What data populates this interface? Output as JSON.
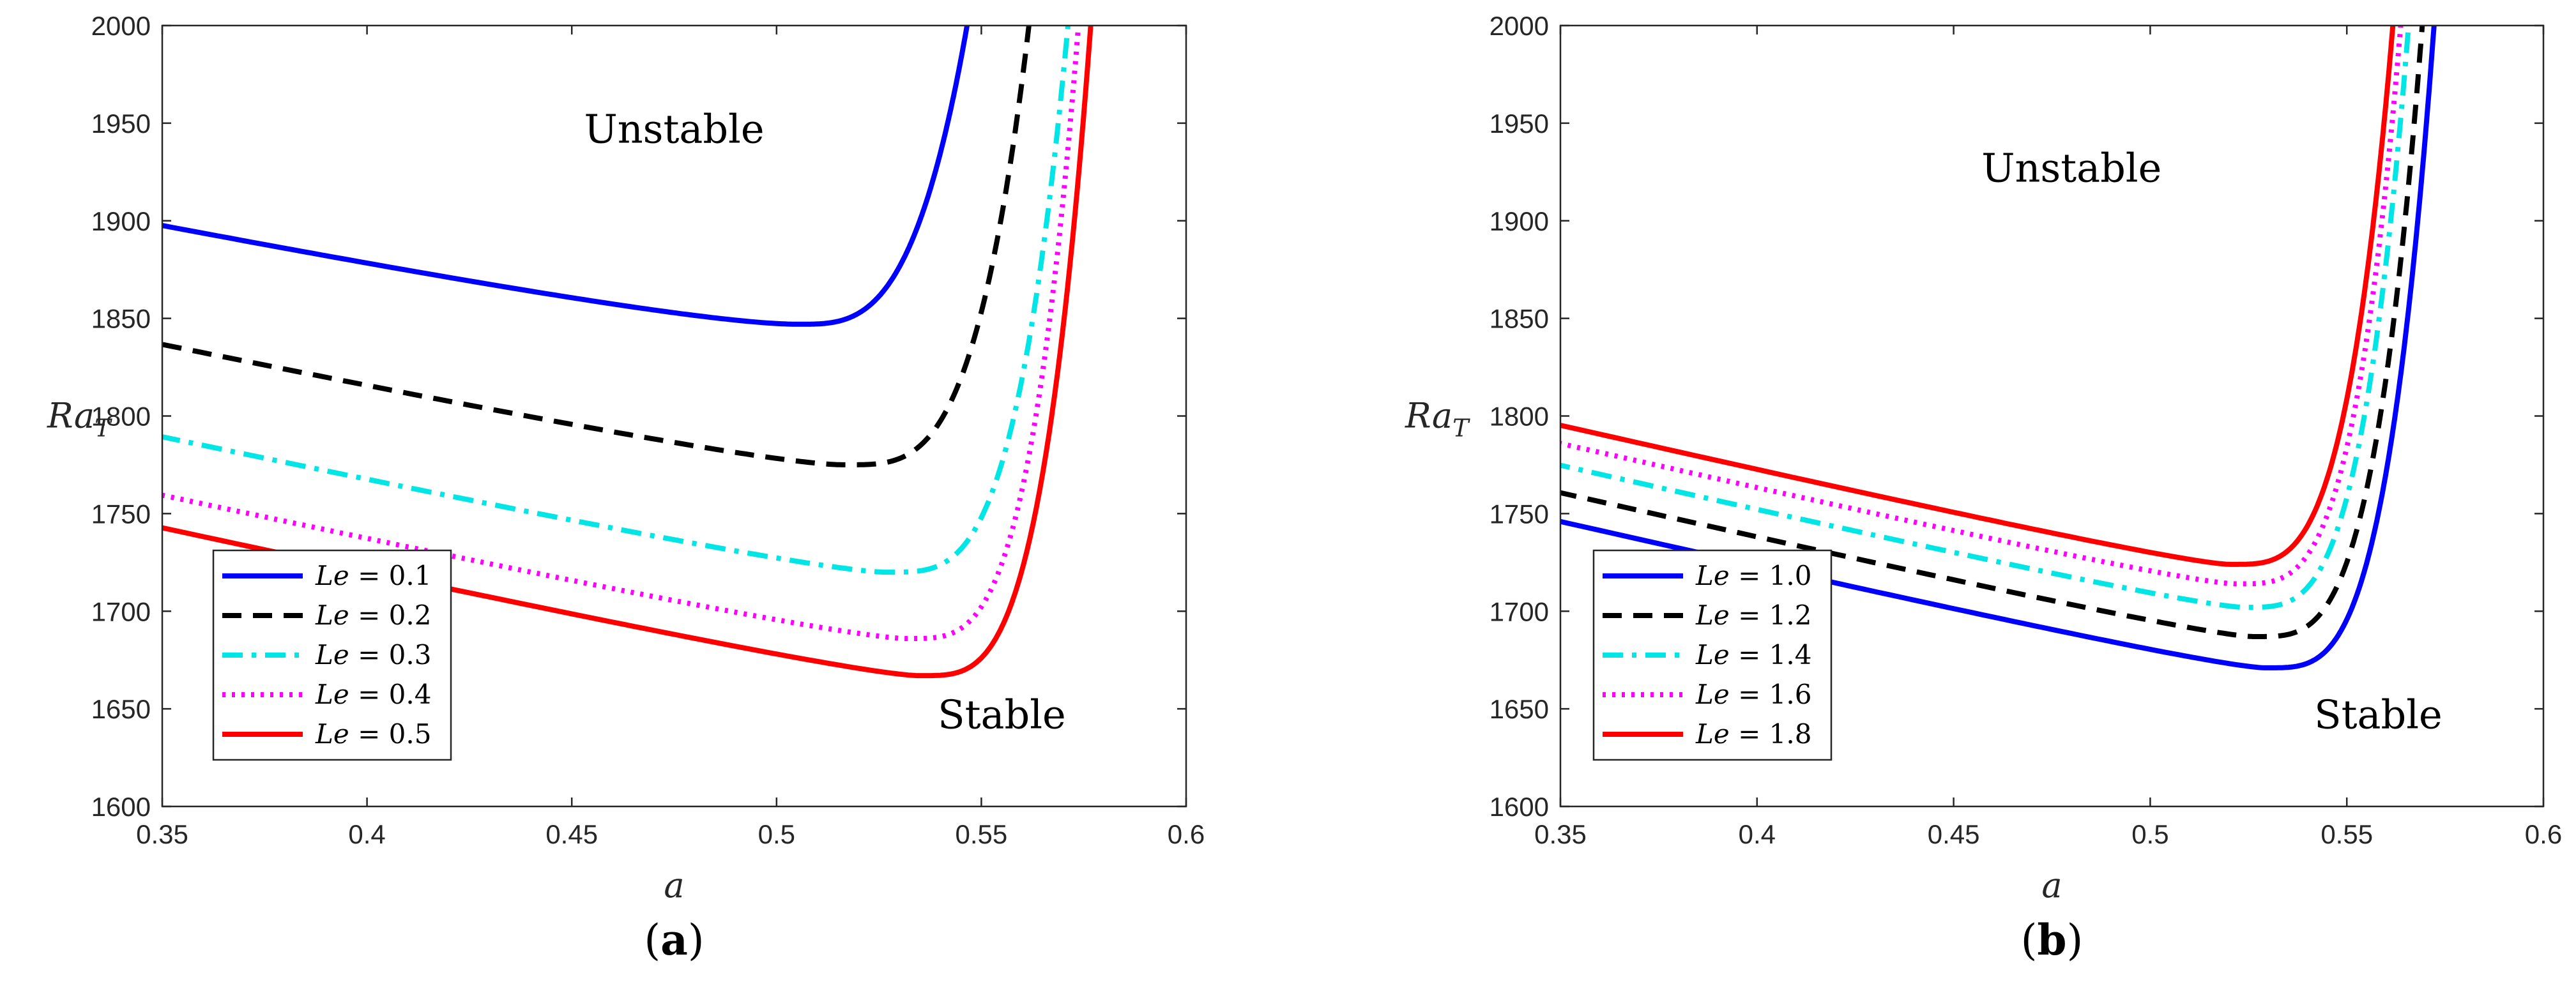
{
  "chart_data": [
    {
      "type": "line",
      "panel_label": "(a)",
      "panel_letter": "a",
      "xlabel": "a",
      "ylabel_main": "Ra",
      "ylabel_sub": "T",
      "xlim": [
        0.35,
        0.6
      ],
      "ylim": [
        1600,
        2000
      ],
      "xticks": [
        0.35,
        0.4,
        0.45,
        0.5,
        0.55,
        0.6
      ],
      "xtick_labels": [
        "0.35",
        "0.4",
        "0.45",
        "0.5",
        "0.55",
        "0.6"
      ],
      "yticks": [
        1600,
        1650,
        1700,
        1750,
        1800,
        1850,
        1900,
        1950,
        2000
      ],
      "ytick_labels": [
        "1600",
        "1650",
        "1700",
        "1750",
        "1800",
        "1850",
        "1900",
        "1950",
        "2000"
      ],
      "annotations": {
        "unstable": "Unstable",
        "stable": "Stable"
      },
      "annotation_positions": {
        "unstable": [
          0.475,
          1940
        ],
        "stable": [
          0.555,
          1640
        ]
      },
      "legend_location": "bottom-left",
      "series": [
        {
          "name": "Le = 0.1",
          "legend_var": "Le",
          "legend_val": "= 0.1",
          "color": "#0000ff",
          "style": "solid",
          "curve": {
            "a_min": 0.5052,
            "ra_min": 1847,
            "left_slope": 7.6,
            "left_curv": 2.0,
            "right_exp": 3.2,
            "xi_top": 0.0416
          }
        },
        {
          "name": "Le = 0.2",
          "legend_var": "Le",
          "legend_val": "= 0.2",
          "color": "#000000",
          "style": "dashed",
          "curve": {
            "a_min": 0.5165,
            "ra_min": 1775,
            "left_slope": 5.5,
            "left_curv": 2.0,
            "right_exp": 3.5,
            "xi_top": 0.0455
          }
        },
        {
          "name": "Le = 0.3",
          "legend_var": "Le",
          "legend_val": "= 0.3",
          "color": "#00e5e5",
          "style": "dashdot",
          "curve": {
            "a_min": 0.527,
            "ra_min": 1720,
            "left_slope": 4.6,
            "left_curv": 2.0,
            "right_exp": 3.5,
            "xi_top": 0.0445
          }
        },
        {
          "name": "Le = 0.4",
          "legend_var": "Le",
          "legend_val": "= 0.4",
          "color": "#ff00ff",
          "style": "dotted",
          "curve": {
            "a_min": 0.532,
            "ra_min": 1686,
            "left_slope": 4.1,
            "left_curv": 2.0,
            "right_exp": 3.5,
            "xi_top": 0.042
          }
        },
        {
          "name": "Le = 0.5",
          "legend_var": "Le",
          "legend_val": "= 0.5",
          "color": "#ff0000",
          "style": "solid",
          "curve": {
            "a_min": 0.535,
            "ra_min": 1667,
            "left_slope": 3.86,
            "left_curv": 2.0,
            "right_exp": 3.5,
            "xi_top": 0.042
          }
        }
      ]
    },
    {
      "type": "line",
      "panel_label": "(b)",
      "panel_letter": "b",
      "xlabel": "a",
      "ylabel_main": "Ra",
      "ylabel_sub": "T",
      "xlim": [
        0.35,
        0.6
      ],
      "ylim": [
        1600,
        2000
      ],
      "xticks": [
        0.35,
        0.4,
        0.45,
        0.5,
        0.55,
        0.6
      ],
      "xtick_labels": [
        "0.35",
        "0.4",
        "0.45",
        "0.5",
        "0.55",
        "0.6"
      ],
      "yticks": [
        1600,
        1650,
        1700,
        1750,
        1800,
        1850,
        1900,
        1950,
        2000
      ],
      "ytick_labels": [
        "1600",
        "1650",
        "1700",
        "1750",
        "1800",
        "1850",
        "1900",
        "1950",
        "2000"
      ],
      "annotations": {
        "unstable": "Unstable",
        "stable": "Stable"
      },
      "annotation_positions": {
        "unstable": [
          0.48,
          1920
        ],
        "stable": [
          0.558,
          1640
        ]
      },
      "legend_location": "bottom-left",
      "series": [
        {
          "name": "Le = 1.0",
          "legend_var": "Le",
          "legend_val": "= 1.0",
          "color": "#0000ff",
          "style": "solid",
          "curve": {
            "a_min": 0.5295,
            "ra_min": 1671,
            "left_slope": 3.42,
            "left_curv": 2.0,
            "right_exp": 3.5,
            "xi_top": 0.043
          }
        },
        {
          "name": "Le = 1.2",
          "legend_var": "Le",
          "legend_val": "= 1.2",
          "color": "#000000",
          "style": "dashed",
          "curve": {
            "a_min": 0.5265,
            "ra_min": 1687,
            "left_slope": 3.39,
            "left_curv": 2.0,
            "right_exp": 3.5,
            "xi_top": 0.043
          }
        },
        {
          "name": "Le = 1.4",
          "legend_var": "Le",
          "legend_val": "= 1.4",
          "color": "#00e5e5",
          "style": "dashdot",
          "curve": {
            "a_min": 0.524,
            "ra_min": 1702,
            "left_slope": 3.34,
            "left_curv": 2.0,
            "right_exp": 3.5,
            "xi_top": 0.042
          }
        },
        {
          "name": "Le = 1.6",
          "legend_var": "Le",
          "legend_val": "= 1.6",
          "color": "#ff00ff",
          "style": "dotted",
          "curve": {
            "a_min": 0.522,
            "ra_min": 1714,
            "left_slope": 3.32,
            "left_curv": 2.0,
            "right_exp": 3.5,
            "xi_top": 0.042
          }
        },
        {
          "name": "Le = 1.8",
          "legend_var": "Le",
          "legend_val": "= 1.8",
          "color": "#ff0000",
          "style": "solid",
          "curve": {
            "a_min": 0.5205,
            "ra_min": 1724,
            "left_slope": 3.32,
            "left_curv": 2.0,
            "right_exp": 3.5,
            "xi_top": 0.0415
          }
        }
      ]
    }
  ]
}
